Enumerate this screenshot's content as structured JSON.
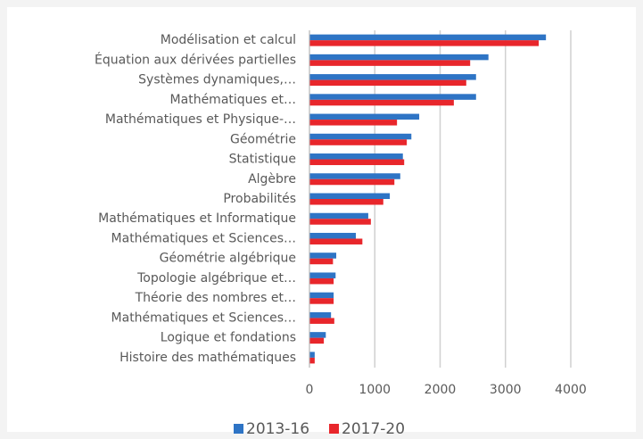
{
  "chart_data": {
    "type": "barh",
    "categories": [
      "Modélisation et calcul",
      "Équation aux dérivées partielles",
      "Systèmes dynamiques,…",
      "Mathématiques et…",
      "Mathématiques et Physique-…",
      "Géométrie",
      "Statistique",
      "Algèbre",
      "Probabilités",
      "Mathématiques et Informatique",
      "Mathématiques et Sciences…",
      "Géométrie algébrique",
      "Topologie algébrique et…",
      "Théorie des nombres et…",
      "Mathématiques et Sciences…",
      "Logique et fondations",
      "Histoire des mathématiques"
    ],
    "series": [
      {
        "name": "2013-16",
        "color": "#2e74c5",
        "values": [
          3620,
          2740,
          2550,
          2550,
          1680,
          1560,
          1430,
          1390,
          1230,
          900,
          710,
          410,
          400,
          370,
          330,
          250,
          80
        ]
      },
      {
        "name": "2017-20",
        "color": "#e8262b",
        "values": [
          3510,
          2460,
          2400,
          2210,
          1340,
          1490,
          1450,
          1300,
          1130,
          940,
          810,
          360,
          370,
          370,
          380,
          220,
          80
        ]
      }
    ],
    "xlim": [
      0,
      4000
    ],
    "xticks": [
      0,
      1000,
      2000,
      3000,
      4000
    ],
    "grid": true,
    "legend": "bottom"
  }
}
